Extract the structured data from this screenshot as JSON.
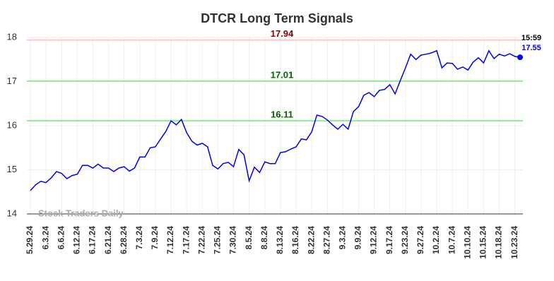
{
  "chart_data": {
    "type": "line",
    "title": "DTCR Long Term Signals",
    "categories": [
      "5.29.24",
      null,
      null,
      "6.3.24",
      null,
      null,
      "6.6.24",
      null,
      null,
      "6.12.24",
      null,
      null,
      "6.17.24",
      null,
      null,
      "6.21.24",
      null,
      null,
      "6.28.24",
      null,
      null,
      "7.3.24",
      null,
      null,
      "7.9.24",
      null,
      null,
      "7.12.24",
      null,
      null,
      "7.17.24",
      null,
      null,
      "7.22.24",
      null,
      null,
      "7.25.24",
      null,
      null,
      "7.30.24",
      null,
      null,
      "8.5.24",
      null,
      null,
      "8.8.24",
      null,
      null,
      "8.13.24",
      null,
      null,
      "8.16.24",
      null,
      null,
      "8.22.24",
      null,
      null,
      "8.27.24",
      null,
      null,
      "9.3.24",
      null,
      null,
      "9.9.24",
      null,
      null,
      "9.12.24",
      null,
      null,
      "9.17.24",
      null,
      null,
      "9.23.24",
      null,
      null,
      "9.27.24",
      null,
      null,
      "10.2.24",
      null,
      null,
      "10.7.24",
      null,
      null,
      "10.10.24",
      null,
      null,
      "10.15.24",
      null,
      null,
      "10.18.24",
      null,
      null,
      "10.23.24",
      null
    ],
    "values": [
      14.53,
      14.66,
      14.74,
      14.71,
      14.82,
      14.96,
      14.92,
      14.8,
      14.87,
      14.9,
      15.1,
      15.1,
      15.04,
      15.13,
      15.04,
      15.04,
      14.96,
      15.04,
      15.07,
      14.97,
      15.04,
      15.29,
      15.29,
      15.5,
      15.52,
      15.7,
      15.87,
      16.11,
      16.02,
      16.14,
      15.84,
      15.65,
      15.56,
      15.6,
      15.52,
      15.1,
      15.02,
      15.14,
      15.17,
      15.07,
      15.46,
      15.34,
      14.75,
      15.06,
      14.94,
      15.18,
      15.14,
      15.14,
      15.39,
      15.41,
      15.47,
      15.52,
      15.7,
      15.68,
      15.86,
      16.24,
      16.21,
      16.13,
      16.02,
      15.92,
      16.03,
      15.92,
      16.32,
      16.43,
      16.69,
      16.75,
      16.66,
      16.8,
      16.82,
      16.93,
      16.72,
      17.02,
      17.31,
      17.62,
      17.5,
      17.6,
      17.62,
      17.65,
      17.7,
      17.31,
      17.42,
      17.41,
      17.28,
      17.33,
      17.26,
      17.44,
      17.54,
      17.42,
      17.7,
      17.52,
      17.62,
      17.58,
      17.63,
      17.57,
      17.55
    ],
    "color": "#0000ee",
    "ylim": [
      14,
      18
    ],
    "yticks": [
      14,
      15,
      16,
      17,
      18
    ],
    "grid": true,
    "reference_lines": [
      {
        "value": 17.94,
        "color": "#ffc8c8",
        "label_color": "#8b0000"
      },
      {
        "value": 17.01,
        "color": "#90ee90",
        "label_color": "#006400"
      },
      {
        "value": 16.11,
        "color": "#90ee90",
        "label_color": "#006400"
      }
    ],
    "last_time": "15:59",
    "watermark": "Stock Traders Daily"
  }
}
